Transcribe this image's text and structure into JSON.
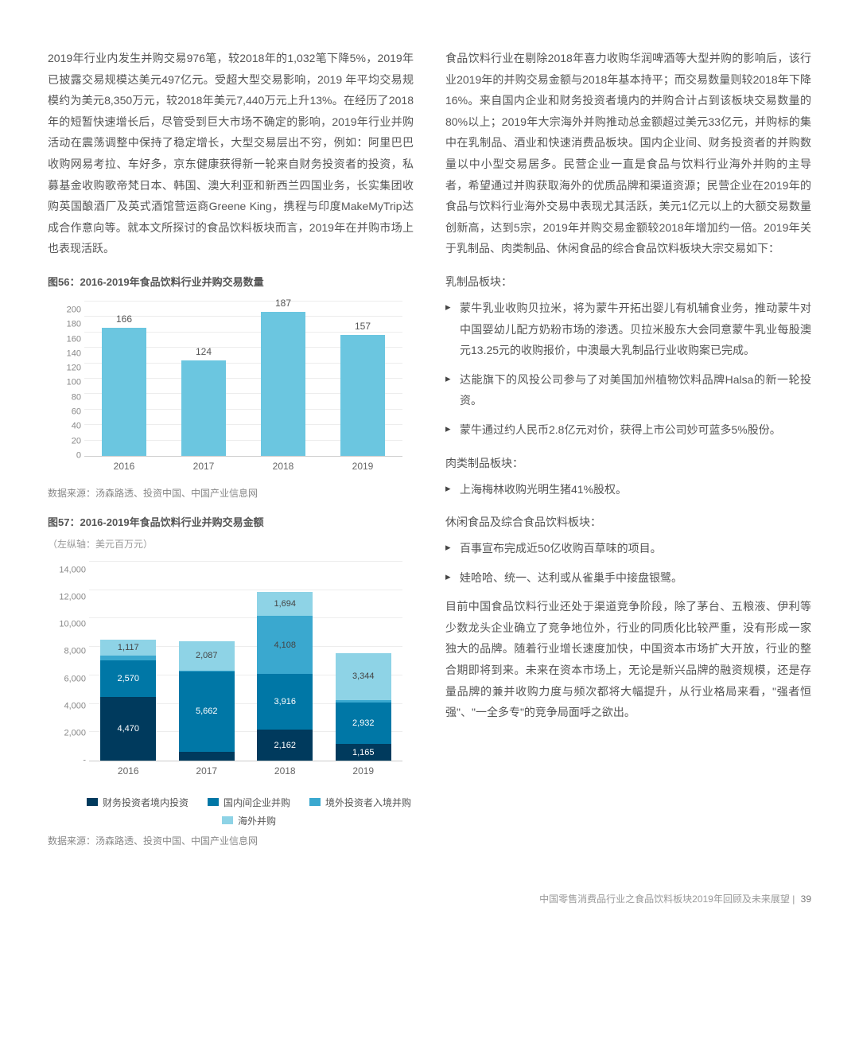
{
  "left": {
    "p1": "2019年行业内发生并购交易976笔，较2018年的1,032笔下降5%，2019年已披露交易规模达美元497亿元。受超大型交易影响，2019 年平均交易规模约为美元8,350万元，较2018年美元7,440万元上升13%。在经历了2018年的短暂快速增长后，尽管受到巨大市场不确定的影响，2019年行业并购活动在震荡调整中保持了稳定增长，大型交易层出不穷，例如：阿里巴巴收购网易考拉、车好多，京东健康获得新一轮来自财务投资者的投资，私募基金收购歌帝梵日本、韩国、澳大利亚和新西兰四国业务，长实集团收购英国酿酒厂及英式酒馆营运商Greene King，携程与印度MakeMyTrip达成合作意向等。就本文所探讨的食品饮料板块而言，2019年在并购市场上也表现活跃。"
  },
  "right": {
    "p1": "食品饮料行业在剔除2018年喜力收购华润啤酒等大型并购的影响后，该行业2019年的并购交易金额与2018年基本持平；而交易数量则较2018年下降16%。来自国内企业和财务投资者境内的并购合计占到该板块交易数量的80%以上；2019年大宗海外并购推动总金额超过美元33亿元，并购标的集中在乳制品、酒业和快速消费品板块。国内企业间、财务投资者的并购数量以中小型交易居多。民营企业一直是食品与饮料行业海外并购的主导者，希望通过并购获取海外的优质品牌和渠道资源；民营企业在2019年的食品与饮料行业海外交易中表现尤其活跃，美元1亿元以上的大额交易数量创新高，达到5宗，2019年并购交易金额较2018年增加约一倍。2019年关于乳制品、肉类制品、休闲食品的综合食品饮料板块大宗交易如下：",
    "dairy_title": "乳制品板块：",
    "dairy": [
      "蒙牛乳业收购贝拉米，将为蒙牛开拓出婴儿有机辅食业务，推动蒙牛对中国婴幼儿配方奶粉市场的渗透。贝拉米股东大会同意蒙牛乳业每股澳元13.25元的收购报价，中澳最大乳制品行业收购案已完成。",
      "达能旗下的风投公司参与了对美国加州植物饮料品牌Halsa的新一轮投资。",
      "蒙牛通过约人民币2.8亿元对价，获得上市公司妙可蓝多5%股份。"
    ],
    "meat_title": "肉类制品板块：",
    "meat": [
      "上海梅林收购光明生猪41%股权。"
    ],
    "snack_title": "休闲食品及综合食品饮料板块：",
    "snack": [
      "百事宣布完成近50亿收购百草味的项目。",
      "娃哈哈、统一、达利或从雀巢手中接盘银鹭。"
    ],
    "p2": "目前中国食品饮料行业还处于渠道竞争阶段，除了茅台、五粮液、伊利等少数龙头企业确立了竞争地位外，行业的同质化比较严重，没有形成一家独大的品牌。随着行业增长速度加快，中国资本市场扩大开放，行业的整合期即将到来。未来在资本市场上，无论是新兴品牌的融资规模，还是存量品牌的兼并收购力度与频次都将大幅提升，从行业格局来看，\"强者恒强\"、\"一全多专\"的竞争局面呼之欲出。"
  },
  "chart1": {
    "title": "图56：2016-2019年食品饮料行业并购交易数量",
    "source": "数据来源：汤森路透、投资中国、中国产业信息网",
    "type": "bar",
    "categories": [
      "2016",
      "2017",
      "2018",
      "2019"
    ],
    "values": [
      166,
      124,
      187,
      157
    ],
    "bar_color": "#6bc6e0",
    "ymax": 200,
    "ytick_step": 20,
    "grid_color": "#ededed",
    "background": "#ffffff",
    "label_color": "#555555"
  },
  "chart2": {
    "title": "图57：2016-2019年食品饮料行业并购交易金额",
    "axis_note": "（左纵轴：美元百万元）",
    "source": "数据来源：汤森路透、投资中国、中国产业信息网",
    "type": "stacked-bar",
    "categories": [
      "2016",
      "2017",
      "2018",
      "2019"
    ],
    "ymax": 14000,
    "ytick_step": 2000,
    "grid_color": "#ededed",
    "series": [
      {
        "key": "financial_domestic",
        "label": "财务投资者境内投资",
        "color": "#003a5d",
        "values": [
          4470,
          629,
          2162,
          1165
        ]
      },
      {
        "key": "domestic_corp",
        "label": "国内间企业并购",
        "color": "#0077a6",
        "values": [
          2570,
          5662,
          3916,
          2932
        ]
      },
      {
        "key": "inbound",
        "label": "境外投资者入境并购",
        "color": "#3aa8cf",
        "values": [
          353,
          39,
          4108,
          146
        ]
      },
      {
        "key": "outbound",
        "label": "海外并购",
        "color": "#8ed3e6",
        "values": [
          1117,
          2087,
          1694,
          3344
        ]
      }
    ]
  },
  "footer": {
    "text": "中国零售消费品行业之食品饮料板块2019年回顾及未来展望",
    "page": "39"
  }
}
